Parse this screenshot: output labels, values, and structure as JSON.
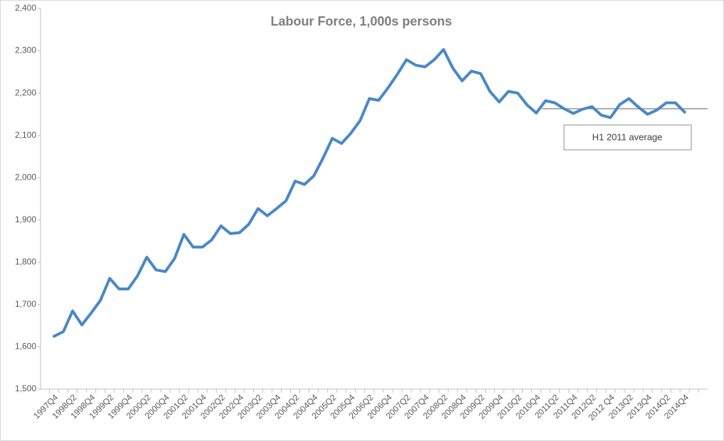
{
  "chart_data": {
    "type": "line",
    "title": "Labour Force, 1,000s persons",
    "categories": [
      "1997Q4",
      null,
      "1998Q2",
      null,
      "1998Q4",
      null,
      "1999Q2",
      null,
      "1999Q4",
      null,
      "2000Q2",
      null,
      "2000Q4",
      null,
      "2001Q2",
      null,
      "2001Q4",
      null,
      "2002Q2",
      null,
      "2002Q4",
      null,
      "2003Q2",
      null,
      "2003Q4",
      null,
      "2004Q2",
      null,
      "2004Q4",
      null,
      "2005Q2",
      null,
      "2005Q4",
      null,
      "2006Q2",
      null,
      "2006Q4",
      null,
      "2007Q2",
      null,
      "2007Q4",
      null,
      "2008Q2",
      null,
      "2008Q4",
      null,
      "2009Q2",
      null,
      "2009Q4",
      null,
      "2010Q2",
      null,
      "2010Q4",
      null,
      "2011Q2",
      null,
      "2011Q4",
      null,
      "2012Q2",
      null,
      "2012 Q4",
      null,
      "2013Q2",
      null,
      "2013Q4",
      null,
      "2014Q2",
      null,
      "2014Q4"
    ],
    "series": [
      {
        "name": "Labour Force",
        "color": "#4a88c7",
        "values": [
          1625,
          1636,
          1685,
          1652,
          1680,
          1710,
          1762,
          1737,
          1737,
          1768,
          1812,
          1782,
          1778,
          1809,
          1866,
          1836,
          1836,
          1853,
          1886,
          1868,
          1870,
          1890,
          1927,
          1910,
          1927,
          1945,
          1992,
          1984,
          2004,
          2046,
          2093,
          2081,
          2105,
          2135,
          2187,
          2183,
          2212,
          2244,
          2279,
          2266,
          2262,
          2279,
          2303,
          2259,
          2229,
          2252,
          2246,
          2204,
          2179,
          2204,
          2200,
          2172,
          2153,
          2182,
          2177,
          2163,
          2152,
          2162,
          2168,
          2148,
          2142,
          2173,
          2187,
          2167,
          2150,
          2160,
          2177,
          2177,
          2155
        ]
      }
    ],
    "ylim": [
      1500,
      2400
    ],
    "yticks": [
      {
        "value": 1500,
        "label": "1,500"
      },
      {
        "value": 1600,
        "label": "1,600"
      },
      {
        "value": 1700,
        "label": "1,700"
      },
      {
        "value": 1800,
        "label": "1,800"
      },
      {
        "value": 1900,
        "label": "1,900"
      },
      {
        "value": 2000,
        "label": "2,000"
      },
      {
        "value": 2100,
        "label": "2,100"
      },
      {
        "value": 2200,
        "label": "2,200"
      },
      {
        "value": 2300,
        "label": "2,300"
      },
      {
        "value": 2400,
        "label": "2,400"
      }
    ],
    "reference_line": {
      "value": 2163,
      "label": "H1 2011 average"
    }
  }
}
